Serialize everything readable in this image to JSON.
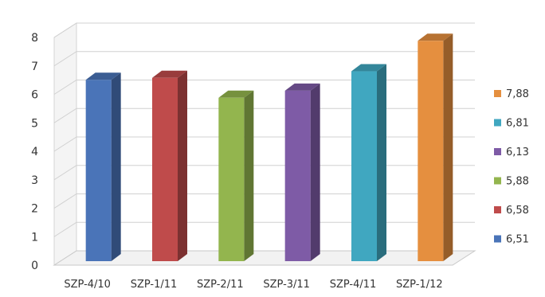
{
  "chart_data": {
    "type": "bar",
    "categories": [
      "SZP-4/10",
      "SZP-1/11",
      "SZP-2/11",
      "SZP-3/11",
      "SZP-4/11",
      "SZP-1/12"
    ],
    "values": [
      6.51,
      6.58,
      5.88,
      6.13,
      6.81,
      7.88
    ],
    "colors": [
      "#4a74b8",
      "#bf4b4b",
      "#93b54e",
      "#7e5ba6",
      "#40a7c0",
      "#e58f3f"
    ],
    "yticks": [
      "0",
      "1",
      "2",
      "3",
      "4",
      "5",
      "6",
      "7",
      "8"
    ],
    "ylim": [
      0,
      8
    ],
    "grid": true,
    "view": "3d-perspective",
    "legend": {
      "placement": "right",
      "entries": [
        {
          "label": "7,88",
          "color": "#e58f3f"
        },
        {
          "label": "6,81",
          "color": "#40a7c0"
        },
        {
          "label": "6,13",
          "color": "#7e5ba6"
        },
        {
          "label": "5,88",
          "color": "#93b54e"
        },
        {
          "label": "6,58",
          "color": "#bf4b4b"
        },
        {
          "label": "6,51",
          "color": "#4a74b8"
        }
      ]
    }
  }
}
